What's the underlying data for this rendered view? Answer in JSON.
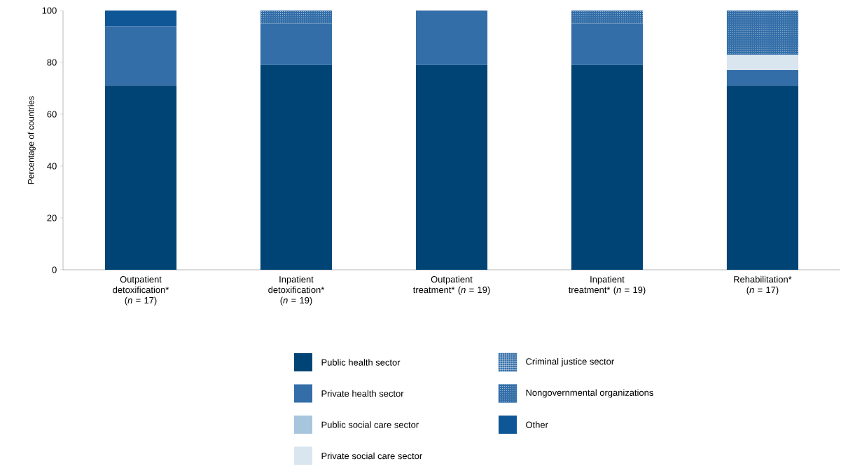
{
  "chart_data": {
    "type": "bar",
    "stacked": true,
    "ylabel": "Percentage of countries",
    "categories": [
      "Outpatient detoxification* (*n* = 17)",
      "Inpatient detoxification* (*n* = 19)",
      "Outpatient treatment* (*n* = 19)",
      "Inpatient treatment* (*n* = 19)",
      "Rehabilitation* (*n* = 17)"
    ],
    "series": [
      {
        "name": "Public health sector",
        "color": "#004475",
        "values": [
          71,
          79,
          79,
          79,
          71
        ]
      },
      {
        "name": "Private health sector",
        "color": "#336ea8",
        "values": [
          23,
          16,
          21,
          16,
          6
        ]
      },
      {
        "name": "Public social care sector",
        "color": "#a8c5de",
        "values": [
          0,
          0,
          0,
          0,
          0
        ]
      },
      {
        "name": "Private social care sector",
        "color": "#d9e5ef",
        "values": [
          0,
          0,
          0,
          0,
          6
        ]
      },
      {
        "name": "Criminal justice sector",
        "color": "#336ea8",
        "values": [
          0,
          0,
          0,
          0,
          0
        ]
      },
      {
        "name": "Nongovernmental organizations",
        "color": "#336ea8",
        "values": [
          0,
          5,
          0,
          5,
          17
        ]
      },
      {
        "name": "Other",
        "color": "#0f5697",
        "values": [
          6,
          0,
          0,
          0,
          0
        ]
      }
    ],
    "ylim": [
      0,
      100
    ],
    "yticks": [
      0,
      20,
      40,
      60,
      80,
      100
    ],
    "legend": "bottom"
  }
}
